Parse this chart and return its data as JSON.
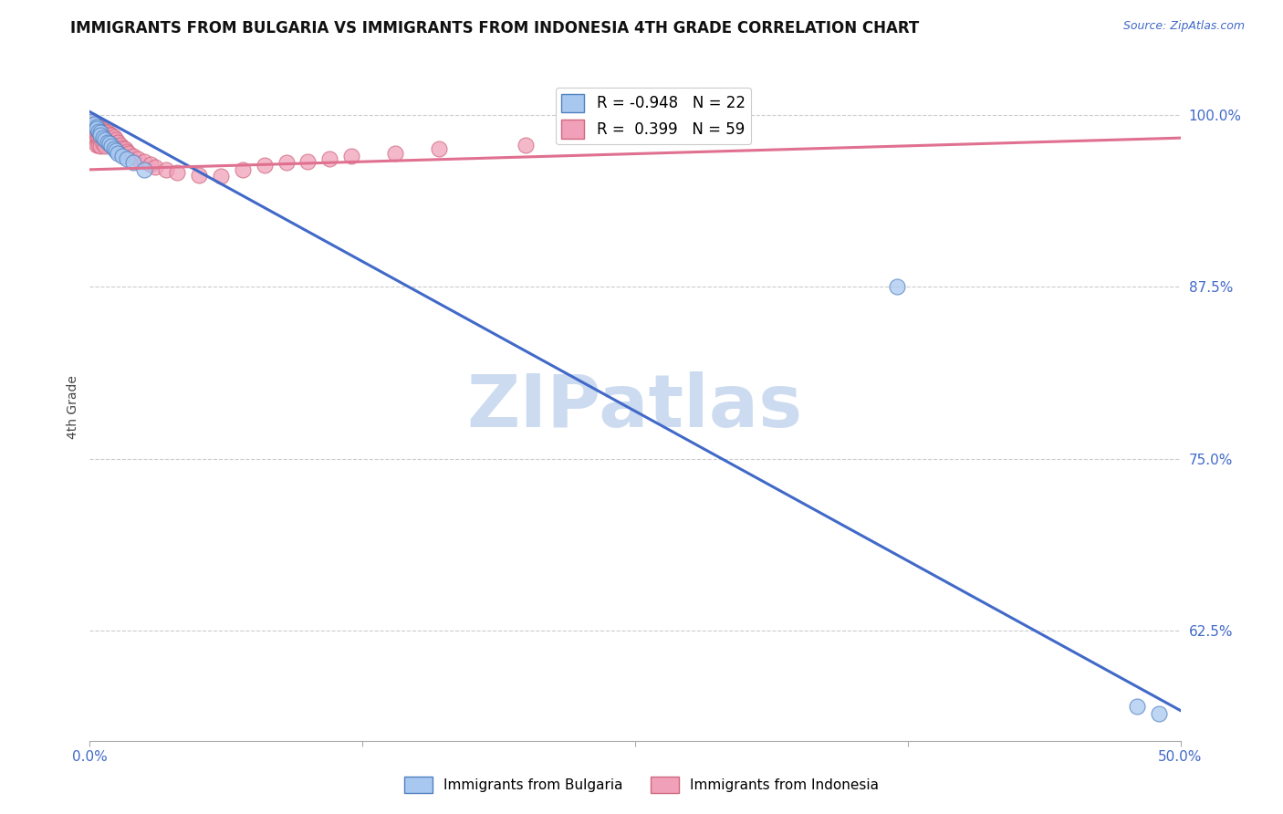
{
  "title": "IMMIGRANTS FROM BULGARIA VS IMMIGRANTS FROM INDONESIA 4TH GRADE CORRELATION CHART",
  "source_text": "Source: ZipAtlas.com",
  "ylabel_label": "4th Grade",
  "ytick_labels": [
    "100.0%",
    "87.5%",
    "75.0%",
    "62.5%"
  ],
  "ytick_values": [
    1.0,
    0.875,
    0.75,
    0.625
  ],
  "xmin": 0.0,
  "xmax": 0.5,
  "ymin": 0.545,
  "ymax": 1.03,
  "bulgaria_R": -0.948,
  "bulgaria_N": 22,
  "indonesia_R": 0.399,
  "indonesia_N": 59,
  "bulgaria_color": "#a8c8f0",
  "indonesia_color": "#f0a0b8",
  "bulgaria_line_color": "#4169c8",
  "indonesia_line_color": "#e07090",
  "legend_label_bulgaria": "Immigrants from Bulgaria",
  "legend_label_indonesia": "Immigrants from Indonesia",
  "watermark": "ZIPatlas",
  "watermark_color": "#c8d8f0",
  "grid_color": "#cccccc",
  "background_color": "#ffffff",
  "bulgaria_x": [
    0.001,
    0.002,
    0.003,
    0.003,
    0.004,
    0.005,
    0.005,
    0.006,
    0.007,
    0.008,
    0.009,
    0.01,
    0.011,
    0.012,
    0.013,
    0.015,
    0.017,
    0.02,
    0.025,
    0.37,
    0.48,
    0.49
  ],
  "bulgaria_y": [
    0.995,
    0.993,
    0.991,
    0.99,
    0.988,
    0.987,
    0.985,
    0.983,
    0.982,
    0.98,
    0.979,
    0.977,
    0.975,
    0.974,
    0.972,
    0.97,
    0.968,
    0.965,
    0.96,
    0.875,
    0.57,
    0.565
  ],
  "indonesia_x": [
    0.001,
    0.001,
    0.001,
    0.002,
    0.002,
    0.002,
    0.003,
    0.003,
    0.003,
    0.003,
    0.003,
    0.004,
    0.004,
    0.004,
    0.004,
    0.005,
    0.005,
    0.005,
    0.005,
    0.006,
    0.006,
    0.006,
    0.007,
    0.007,
    0.007,
    0.008,
    0.008,
    0.009,
    0.009,
    0.01,
    0.01,
    0.011,
    0.011,
    0.012,
    0.012,
    0.013,
    0.014,
    0.015,
    0.016,
    0.017,
    0.018,
    0.02,
    0.022,
    0.025,
    0.028,
    0.03,
    0.035,
    0.04,
    0.05,
    0.06,
    0.07,
    0.08,
    0.09,
    0.1,
    0.11,
    0.12,
    0.14,
    0.16,
    0.2
  ],
  "indonesia_y": [
    0.995,
    0.992,
    0.988,
    0.994,
    0.99,
    0.985,
    0.993,
    0.989,
    0.985,
    0.982,
    0.978,
    0.991,
    0.987,
    0.983,
    0.978,
    0.99,
    0.986,
    0.982,
    0.977,
    0.989,
    0.984,
    0.979,
    0.988,
    0.983,
    0.977,
    0.987,
    0.981,
    0.986,
    0.98,
    0.985,
    0.978,
    0.984,
    0.977,
    0.982,
    0.975,
    0.98,
    0.978,
    0.976,
    0.975,
    0.973,
    0.972,
    0.97,
    0.968,
    0.966,
    0.964,
    0.962,
    0.96,
    0.958,
    0.956,
    0.955,
    0.96,
    0.963,
    0.965,
    0.966,
    0.968,
    0.97,
    0.972,
    0.975,
    0.978
  ],
  "title_fontsize": 12,
  "axis_fontsize": 10,
  "tick_fontsize": 11,
  "dot_size": 150
}
